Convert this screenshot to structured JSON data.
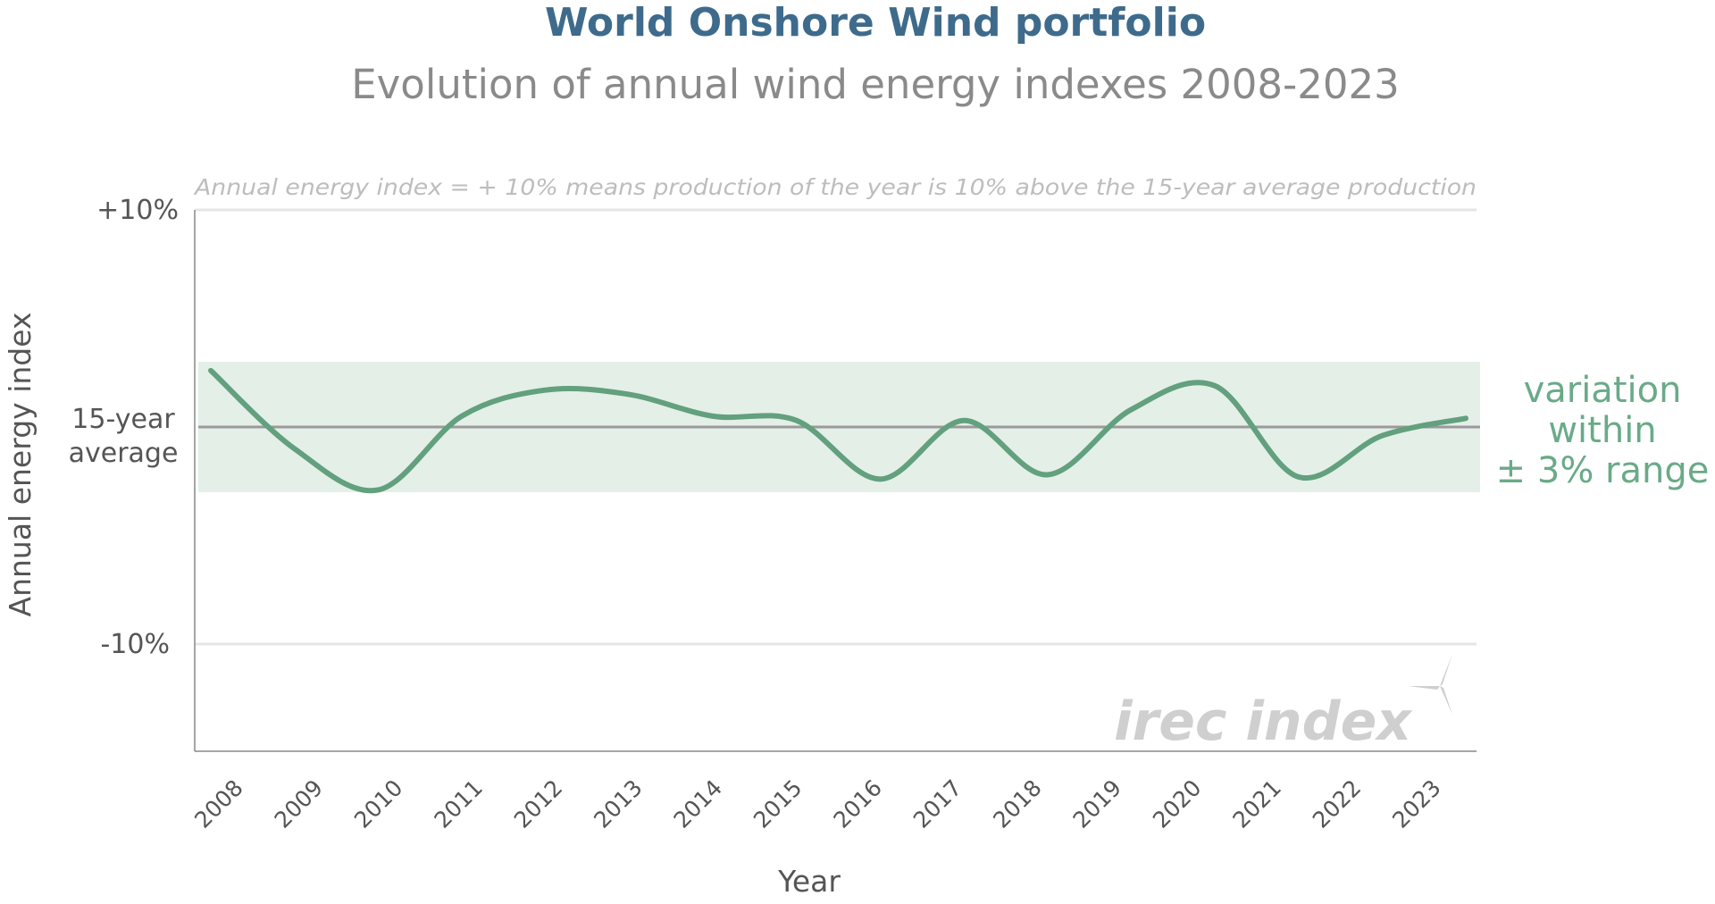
{
  "colors": {
    "title": "#3e6b8c",
    "subtitle": "#8a8a8a",
    "note": "#bdbdbd",
    "series_line": "#62a07e",
    "band": "#e4efe8",
    "average_line": "#9a9a9a",
    "grid": "#e6e6e6",
    "range_text": "#6aaa88",
    "watermark": "#cfcfcf"
  },
  "chart_data": {
    "type": "line",
    "title": "World Onshore Wind portfolio",
    "subtitle": "Evolution of annual wind energy indexes 2008-2023",
    "note": "Annual energy index = + 10% means production of the year is 10% above the 15-year average production",
    "xlabel": "Year",
    "ylabel": "Annual energy index",
    "ylim": [
      -12.5,
      10
    ],
    "y_ticks": [
      {
        "value": 10,
        "label": "+10%"
      },
      {
        "value": -10,
        "label": "-10%"
      }
    ],
    "average_label": [
      "15-year",
      "average"
    ],
    "band": {
      "low": -3,
      "high": 3,
      "label": [
        "variation",
        "within",
        "± 3% range"
      ]
    },
    "categories": [
      "2008",
      "2009",
      "2010",
      "2011",
      "2012",
      "2013",
      "2014",
      "2015",
      "2016",
      "2017",
      "2018",
      "2019",
      "2020",
      "2021",
      "2022",
      "2023"
    ],
    "values": [
      2.6,
      -1.0,
      -2.9,
      0.5,
      1.7,
      1.5,
      0.5,
      0.3,
      -2.4,
      0.3,
      -2.2,
      0.8,
      1.9,
      -2.3,
      -0.4,
      0.4
    ],
    "grid": true,
    "smooth": true
  },
  "watermark": "irec index"
}
